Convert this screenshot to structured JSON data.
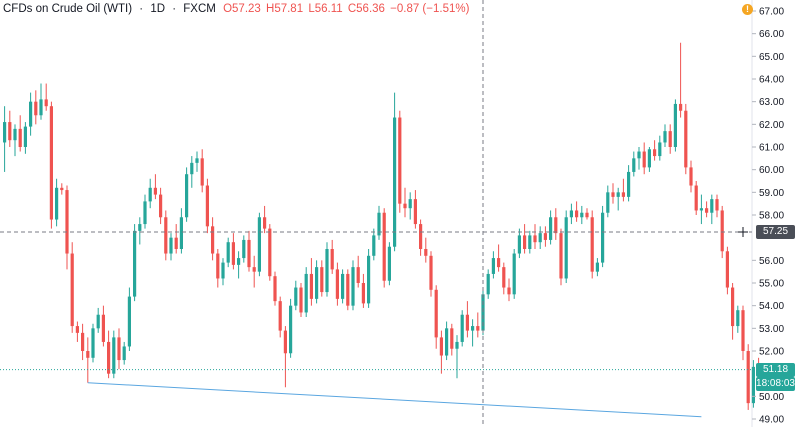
{
  "legend": {
    "symbol": "CFDs on Crude Oil (WTI)",
    "interval": "1D",
    "exchange": "FXCM",
    "open": "O57.23",
    "high": "H57.81",
    "low": "L56.11",
    "close": "C56.36",
    "change": "−0.87 (−1.51%)"
  },
  "alert_icon": "!",
  "price_axis": {
    "ticks": [
      "67.00",
      "66.00",
      "65.00",
      "64.00",
      "63.00",
      "62.00",
      "61.00",
      "60.00",
      "59.00",
      "58.00",
      "56.00",
      "55.00",
      "54.00",
      "53.00",
      "52.00",
      "50.00",
      "49.00"
    ],
    "crosshair_badge": "57.25",
    "last_price_badge": "51.18",
    "countdown_badge": "18:08:03"
  },
  "colors": {
    "up": "#26a69a",
    "down": "#ef5350",
    "trendline": "#5aa6e0",
    "lastline": "#26a69a",
    "crosshair": "#787b86",
    "badge_dark": "#4a4e57"
  },
  "chart_data": {
    "type": "candlestick",
    "ylim": [
      48.8,
      67.2
    ],
    "crosshair_price": 57.25,
    "last_price": 51.18,
    "trendline": {
      "start": {
        "bar": 16,
        "price": 50.6
      },
      "end": {
        "bar": 134,
        "price": 49.1
      }
    },
    "candles": [
      {
        "o": 61.2,
        "h": 62.8,
        "l": 59.9,
        "c": 62.1
      },
      {
        "o": 62.1,
        "h": 62.6,
        "l": 61.0,
        "c": 61.3
      },
      {
        "o": 61.3,
        "h": 62.0,
        "l": 60.6,
        "c": 61.8
      },
      {
        "o": 61.8,
        "h": 62.4,
        "l": 60.8,
        "c": 61.0
      },
      {
        "o": 61.0,
        "h": 62.1,
        "l": 60.7,
        "c": 61.9
      },
      {
        "o": 61.9,
        "h": 63.4,
        "l": 61.5,
        "c": 63.0
      },
      {
        "o": 63.0,
        "h": 63.5,
        "l": 62.0,
        "c": 62.4
      },
      {
        "o": 62.4,
        "h": 63.8,
        "l": 62.2,
        "c": 63.1
      },
      {
        "o": 63.1,
        "h": 63.8,
        "l": 62.6,
        "c": 62.8
      },
      {
        "o": 62.8,
        "h": 63.0,
        "l": 57.4,
        "c": 57.8
      },
      {
        "o": 57.8,
        "h": 59.6,
        "l": 57.5,
        "c": 59.2
      },
      {
        "o": 59.2,
        "h": 59.4,
        "l": 58.9,
        "c": 59.1
      },
      {
        "o": 59.1,
        "h": 59.3,
        "l": 55.6,
        "c": 56.3
      },
      {
        "o": 56.3,
        "h": 56.8,
        "l": 52.8,
        "c": 53.1
      },
      {
        "o": 53.1,
        "h": 53.3,
        "l": 52.4,
        "c": 52.8
      },
      {
        "o": 52.8,
        "h": 53.2,
        "l": 51.6,
        "c": 52.0
      },
      {
        "o": 52.0,
        "h": 52.6,
        "l": 50.6,
        "c": 51.7
      },
      {
        "o": 51.7,
        "h": 53.2,
        "l": 51.5,
        "c": 53.0
      },
      {
        "o": 53.0,
        "h": 53.9,
        "l": 52.8,
        "c": 53.6
      },
      {
        "o": 53.6,
        "h": 54.0,
        "l": 52.2,
        "c": 52.4
      },
      {
        "o": 52.4,
        "h": 52.9,
        "l": 50.8,
        "c": 51.0
      },
      {
        "o": 51.0,
        "h": 52.9,
        "l": 50.8,
        "c": 52.6
      },
      {
        "o": 52.6,
        "h": 53.0,
        "l": 51.2,
        "c": 51.6
      },
      {
        "o": 51.6,
        "h": 52.4,
        "l": 51.4,
        "c": 52.2
      },
      {
        "o": 52.2,
        "h": 54.8,
        "l": 52.0,
        "c": 54.4
      },
      {
        "o": 54.4,
        "h": 57.6,
        "l": 54.2,
        "c": 57.3
      },
      {
        "o": 57.3,
        "h": 57.9,
        "l": 56.7,
        "c": 57.6
      },
      {
        "o": 57.6,
        "h": 58.9,
        "l": 57.4,
        "c": 58.6
      },
      {
        "o": 58.6,
        "h": 59.6,
        "l": 58.3,
        "c": 59.2
      },
      {
        "o": 59.2,
        "h": 59.8,
        "l": 58.7,
        "c": 58.9
      },
      {
        "o": 58.9,
        "h": 59.2,
        "l": 57.6,
        "c": 57.9
      },
      {
        "o": 57.9,
        "h": 58.2,
        "l": 56.0,
        "c": 56.3
      },
      {
        "o": 56.3,
        "h": 57.2,
        "l": 56.0,
        "c": 57.0
      },
      {
        "o": 57.0,
        "h": 57.6,
        "l": 56.3,
        "c": 56.5
      },
      {
        "o": 56.5,
        "h": 58.3,
        "l": 56.3,
        "c": 57.9
      },
      {
        "o": 57.9,
        "h": 60.1,
        "l": 57.7,
        "c": 59.8
      },
      {
        "o": 59.8,
        "h": 60.6,
        "l": 59.2,
        "c": 60.3
      },
      {
        "o": 60.3,
        "h": 60.8,
        "l": 59.9,
        "c": 60.5
      },
      {
        "o": 60.5,
        "h": 60.9,
        "l": 59.0,
        "c": 59.3
      },
      {
        "o": 59.3,
        "h": 59.6,
        "l": 57.2,
        "c": 57.5
      },
      {
        "o": 57.5,
        "h": 57.9,
        "l": 56.0,
        "c": 56.3
      },
      {
        "o": 56.3,
        "h": 56.5,
        "l": 54.8,
        "c": 55.2
      },
      {
        "o": 55.2,
        "h": 56.1,
        "l": 54.9,
        "c": 55.9
      },
      {
        "o": 55.9,
        "h": 57.0,
        "l": 55.7,
        "c": 56.8
      },
      {
        "o": 56.8,
        "h": 57.2,
        "l": 55.6,
        "c": 55.8
      },
      {
        "o": 55.8,
        "h": 56.4,
        "l": 55.2,
        "c": 56.1
      },
      {
        "o": 56.1,
        "h": 57.1,
        "l": 55.9,
        "c": 56.9
      },
      {
        "o": 56.9,
        "h": 57.3,
        "l": 55.5,
        "c": 55.7
      },
      {
        "o": 55.7,
        "h": 56.2,
        "l": 54.8,
        "c": 55.5
      },
      {
        "o": 55.5,
        "h": 58.1,
        "l": 55.3,
        "c": 57.9
      },
      {
        "o": 57.9,
        "h": 58.4,
        "l": 57.2,
        "c": 57.4
      },
      {
        "o": 57.4,
        "h": 57.6,
        "l": 55.1,
        "c": 55.3
      },
      {
        "o": 55.3,
        "h": 55.5,
        "l": 54.0,
        "c": 54.2
      },
      {
        "o": 54.2,
        "h": 54.4,
        "l": 52.6,
        "c": 52.9
      },
      {
        "o": 52.9,
        "h": 53.1,
        "l": 50.4,
        "c": 51.9
      },
      {
        "o": 51.9,
        "h": 54.3,
        "l": 51.7,
        "c": 54.0
      },
      {
        "o": 54.0,
        "h": 55.1,
        "l": 53.8,
        "c": 54.8
      },
      {
        "o": 54.8,
        "h": 55.0,
        "l": 53.5,
        "c": 53.7
      },
      {
        "o": 53.7,
        "h": 55.7,
        "l": 53.5,
        "c": 55.4
      },
      {
        "o": 55.4,
        "h": 56.1,
        "l": 54.0,
        "c": 54.3
      },
      {
        "o": 54.3,
        "h": 56.0,
        "l": 54.1,
        "c": 55.7
      },
      {
        "o": 55.7,
        "h": 56.0,
        "l": 54.4,
        "c": 54.6
      },
      {
        "o": 54.6,
        "h": 56.8,
        "l": 54.4,
        "c": 56.5
      },
      {
        "o": 56.5,
        "h": 56.9,
        "l": 55.4,
        "c": 55.6
      },
      {
        "o": 55.6,
        "h": 55.9,
        "l": 54.0,
        "c": 54.3
      },
      {
        "o": 54.3,
        "h": 55.6,
        "l": 54.1,
        "c": 55.4
      },
      {
        "o": 55.4,
        "h": 55.6,
        "l": 53.8,
        "c": 54.0
      },
      {
        "o": 54.0,
        "h": 56.0,
        "l": 53.8,
        "c": 55.7
      },
      {
        "o": 55.7,
        "h": 56.2,
        "l": 54.8,
        "c": 55.0
      },
      {
        "o": 55.0,
        "h": 55.4,
        "l": 53.9,
        "c": 54.1
      },
      {
        "o": 54.1,
        "h": 56.5,
        "l": 53.9,
        "c": 56.2
      },
      {
        "o": 56.2,
        "h": 57.4,
        "l": 56.0,
        "c": 57.1
      },
      {
        "o": 57.1,
        "h": 58.4,
        "l": 56.9,
        "c": 58.1
      },
      {
        "o": 58.1,
        "h": 58.3,
        "l": 54.8,
        "c": 55.1
      },
      {
        "o": 55.1,
        "h": 56.8,
        "l": 54.9,
        "c": 56.6
      },
      {
        "o": 56.6,
        "h": 63.4,
        "l": 56.4,
        "c": 62.3
      },
      {
        "o": 62.3,
        "h": 62.6,
        "l": 58.1,
        "c": 58.5
      },
      {
        "o": 58.5,
        "h": 59.2,
        "l": 57.9,
        "c": 58.3
      },
      {
        "o": 58.3,
        "h": 59.0,
        "l": 57.8,
        "c": 58.7
      },
      {
        "o": 58.7,
        "h": 59.1,
        "l": 57.4,
        "c": 57.6
      },
      {
        "o": 57.6,
        "h": 57.8,
        "l": 56.2,
        "c": 56.5
      },
      {
        "o": 56.5,
        "h": 57.0,
        "l": 55.9,
        "c": 56.2
      },
      {
        "o": 56.2,
        "h": 56.4,
        "l": 54.4,
        "c": 54.7
      },
      {
        "o": 54.7,
        "h": 54.9,
        "l": 52.1,
        "c": 52.6
      },
      {
        "o": 52.6,
        "h": 52.9,
        "l": 51.0,
        "c": 51.8
      },
      {
        "o": 51.8,
        "h": 53.3,
        "l": 51.6,
        "c": 53.0
      },
      {
        "o": 53.0,
        "h": 53.2,
        "l": 51.8,
        "c": 52.1
      },
      {
        "o": 52.1,
        "h": 52.7,
        "l": 50.8,
        "c": 52.4
      },
      {
        "o": 52.4,
        "h": 53.8,
        "l": 52.2,
        "c": 53.6
      },
      {
        "o": 53.6,
        "h": 54.2,
        "l": 52.6,
        "c": 52.9
      },
      {
        "o": 52.9,
        "h": 53.4,
        "l": 52.2,
        "c": 53.1
      },
      {
        "o": 53.1,
        "h": 53.7,
        "l": 52.6,
        "c": 52.9
      },
      {
        "o": 52.9,
        "h": 54.8,
        "l": 52.7,
        "c": 54.5
      },
      {
        "o": 54.5,
        "h": 55.6,
        "l": 54.3,
        "c": 55.4
      },
      {
        "o": 55.4,
        "h": 56.4,
        "l": 55.2,
        "c": 56.1
      },
      {
        "o": 56.1,
        "h": 56.7,
        "l": 55.5,
        "c": 55.7
      },
      {
        "o": 55.7,
        "h": 55.9,
        "l": 54.5,
        "c": 54.8
      },
      {
        "o": 54.8,
        "h": 55.2,
        "l": 54.2,
        "c": 54.5
      },
      {
        "o": 54.5,
        "h": 56.5,
        "l": 54.3,
        "c": 56.3
      },
      {
        "o": 56.3,
        "h": 57.4,
        "l": 56.1,
        "c": 57.1
      },
      {
        "o": 57.1,
        "h": 57.6,
        "l": 56.3,
        "c": 56.5
      },
      {
        "o": 56.5,
        "h": 57.3,
        "l": 56.3,
        "c": 57.1
      },
      {
        "o": 57.1,
        "h": 57.6,
        "l": 56.5,
        "c": 56.8
      },
      {
        "o": 56.8,
        "h": 57.5,
        "l": 56.5,
        "c": 57.2
      },
      {
        "o": 57.2,
        "h": 57.5,
        "l": 56.6,
        "c": 56.9
      },
      {
        "o": 56.9,
        "h": 58.2,
        "l": 56.7,
        "c": 57.9
      },
      {
        "o": 57.9,
        "h": 58.3,
        "l": 56.9,
        "c": 57.2
      },
      {
        "o": 57.2,
        "h": 57.4,
        "l": 54.9,
        "c": 55.2
      },
      {
        "o": 55.2,
        "h": 58.2,
        "l": 55.0,
        "c": 57.9
      },
      {
        "o": 57.9,
        "h": 58.5,
        "l": 57.6,
        "c": 58.2
      },
      {
        "o": 58.2,
        "h": 58.6,
        "l": 57.7,
        "c": 57.9
      },
      {
        "o": 57.9,
        "h": 58.4,
        "l": 57.6,
        "c": 58.1
      },
      {
        "o": 58.1,
        "h": 58.3,
        "l": 57.8,
        "c": 57.9
      },
      {
        "o": 57.9,
        "h": 58.2,
        "l": 55.2,
        "c": 55.5
      },
      {
        "o": 55.5,
        "h": 56.1,
        "l": 55.3,
        "c": 55.9
      },
      {
        "o": 55.9,
        "h": 58.4,
        "l": 55.7,
        "c": 58.1
      },
      {
        "o": 58.1,
        "h": 59.3,
        "l": 57.9,
        "c": 59.0
      },
      {
        "o": 59.0,
        "h": 59.4,
        "l": 58.5,
        "c": 58.8
      },
      {
        "o": 58.8,
        "h": 59.2,
        "l": 58.2,
        "c": 59.0
      },
      {
        "o": 59.0,
        "h": 59.6,
        "l": 58.6,
        "c": 58.8
      },
      {
        "o": 58.8,
        "h": 60.2,
        "l": 58.6,
        "c": 59.9
      },
      {
        "o": 59.9,
        "h": 60.8,
        "l": 59.7,
        "c": 60.5
      },
      {
        "o": 60.5,
        "h": 61.0,
        "l": 60.0,
        "c": 60.8
      },
      {
        "o": 60.8,
        "h": 61.2,
        "l": 59.8,
        "c": 60.1
      },
      {
        "o": 60.1,
        "h": 61.0,
        "l": 59.9,
        "c": 60.9
      },
      {
        "o": 60.9,
        "h": 61.3,
        "l": 60.4,
        "c": 60.6
      },
      {
        "o": 60.6,
        "h": 61.5,
        "l": 60.4,
        "c": 61.2
      },
      {
        "o": 61.2,
        "h": 62.0,
        "l": 61.0,
        "c": 61.7
      },
      {
        "o": 61.7,
        "h": 62.0,
        "l": 60.7,
        "c": 61.0
      },
      {
        "o": 61.0,
        "h": 63.1,
        "l": 60.8,
        "c": 62.9
      },
      {
        "o": 62.9,
        "h": 65.6,
        "l": 62.3,
        "c": 62.6
      },
      {
        "o": 62.6,
        "h": 62.9,
        "l": 59.8,
        "c": 60.1
      },
      {
        "o": 60.1,
        "h": 60.4,
        "l": 59.0,
        "c": 59.3
      },
      {
        "o": 59.3,
        "h": 59.5,
        "l": 58.0,
        "c": 58.2
      },
      {
        "o": 58.2,
        "h": 58.9,
        "l": 57.6,
        "c": 58.3
      },
      {
        "o": 58.3,
        "h": 58.6,
        "l": 57.9,
        "c": 58.1
      },
      {
        "o": 58.1,
        "h": 58.9,
        "l": 57.6,
        "c": 58.7
      },
      {
        "o": 58.7,
        "h": 58.9,
        "l": 57.9,
        "c": 58.2
      },
      {
        "o": 58.2,
        "h": 58.4,
        "l": 56.1,
        "c": 56.4
      },
      {
        "o": 56.4,
        "h": 56.6,
        "l": 54.5,
        "c": 54.8
      },
      {
        "o": 54.8,
        "h": 55.0,
        "l": 52.5,
        "c": 53.1
      },
      {
        "o": 53.1,
        "h": 54.0,
        "l": 52.8,
        "c": 53.8
      },
      {
        "o": 53.8,
        "h": 54.0,
        "l": 51.6,
        "c": 52.0
      },
      {
        "o": 52.0,
        "h": 52.3,
        "l": 49.4,
        "c": 49.7
      },
      {
        "o": 49.7,
        "h": 51.6,
        "l": 49.5,
        "c": 51.3
      },
      {
        "o": 51.3,
        "h": 51.7,
        "l": 50.8,
        "c": 51.2
      },
      {
        "o": 51.2,
        "h": 51.4,
        "l": 51.0,
        "c": 51.18
      }
    ]
  }
}
